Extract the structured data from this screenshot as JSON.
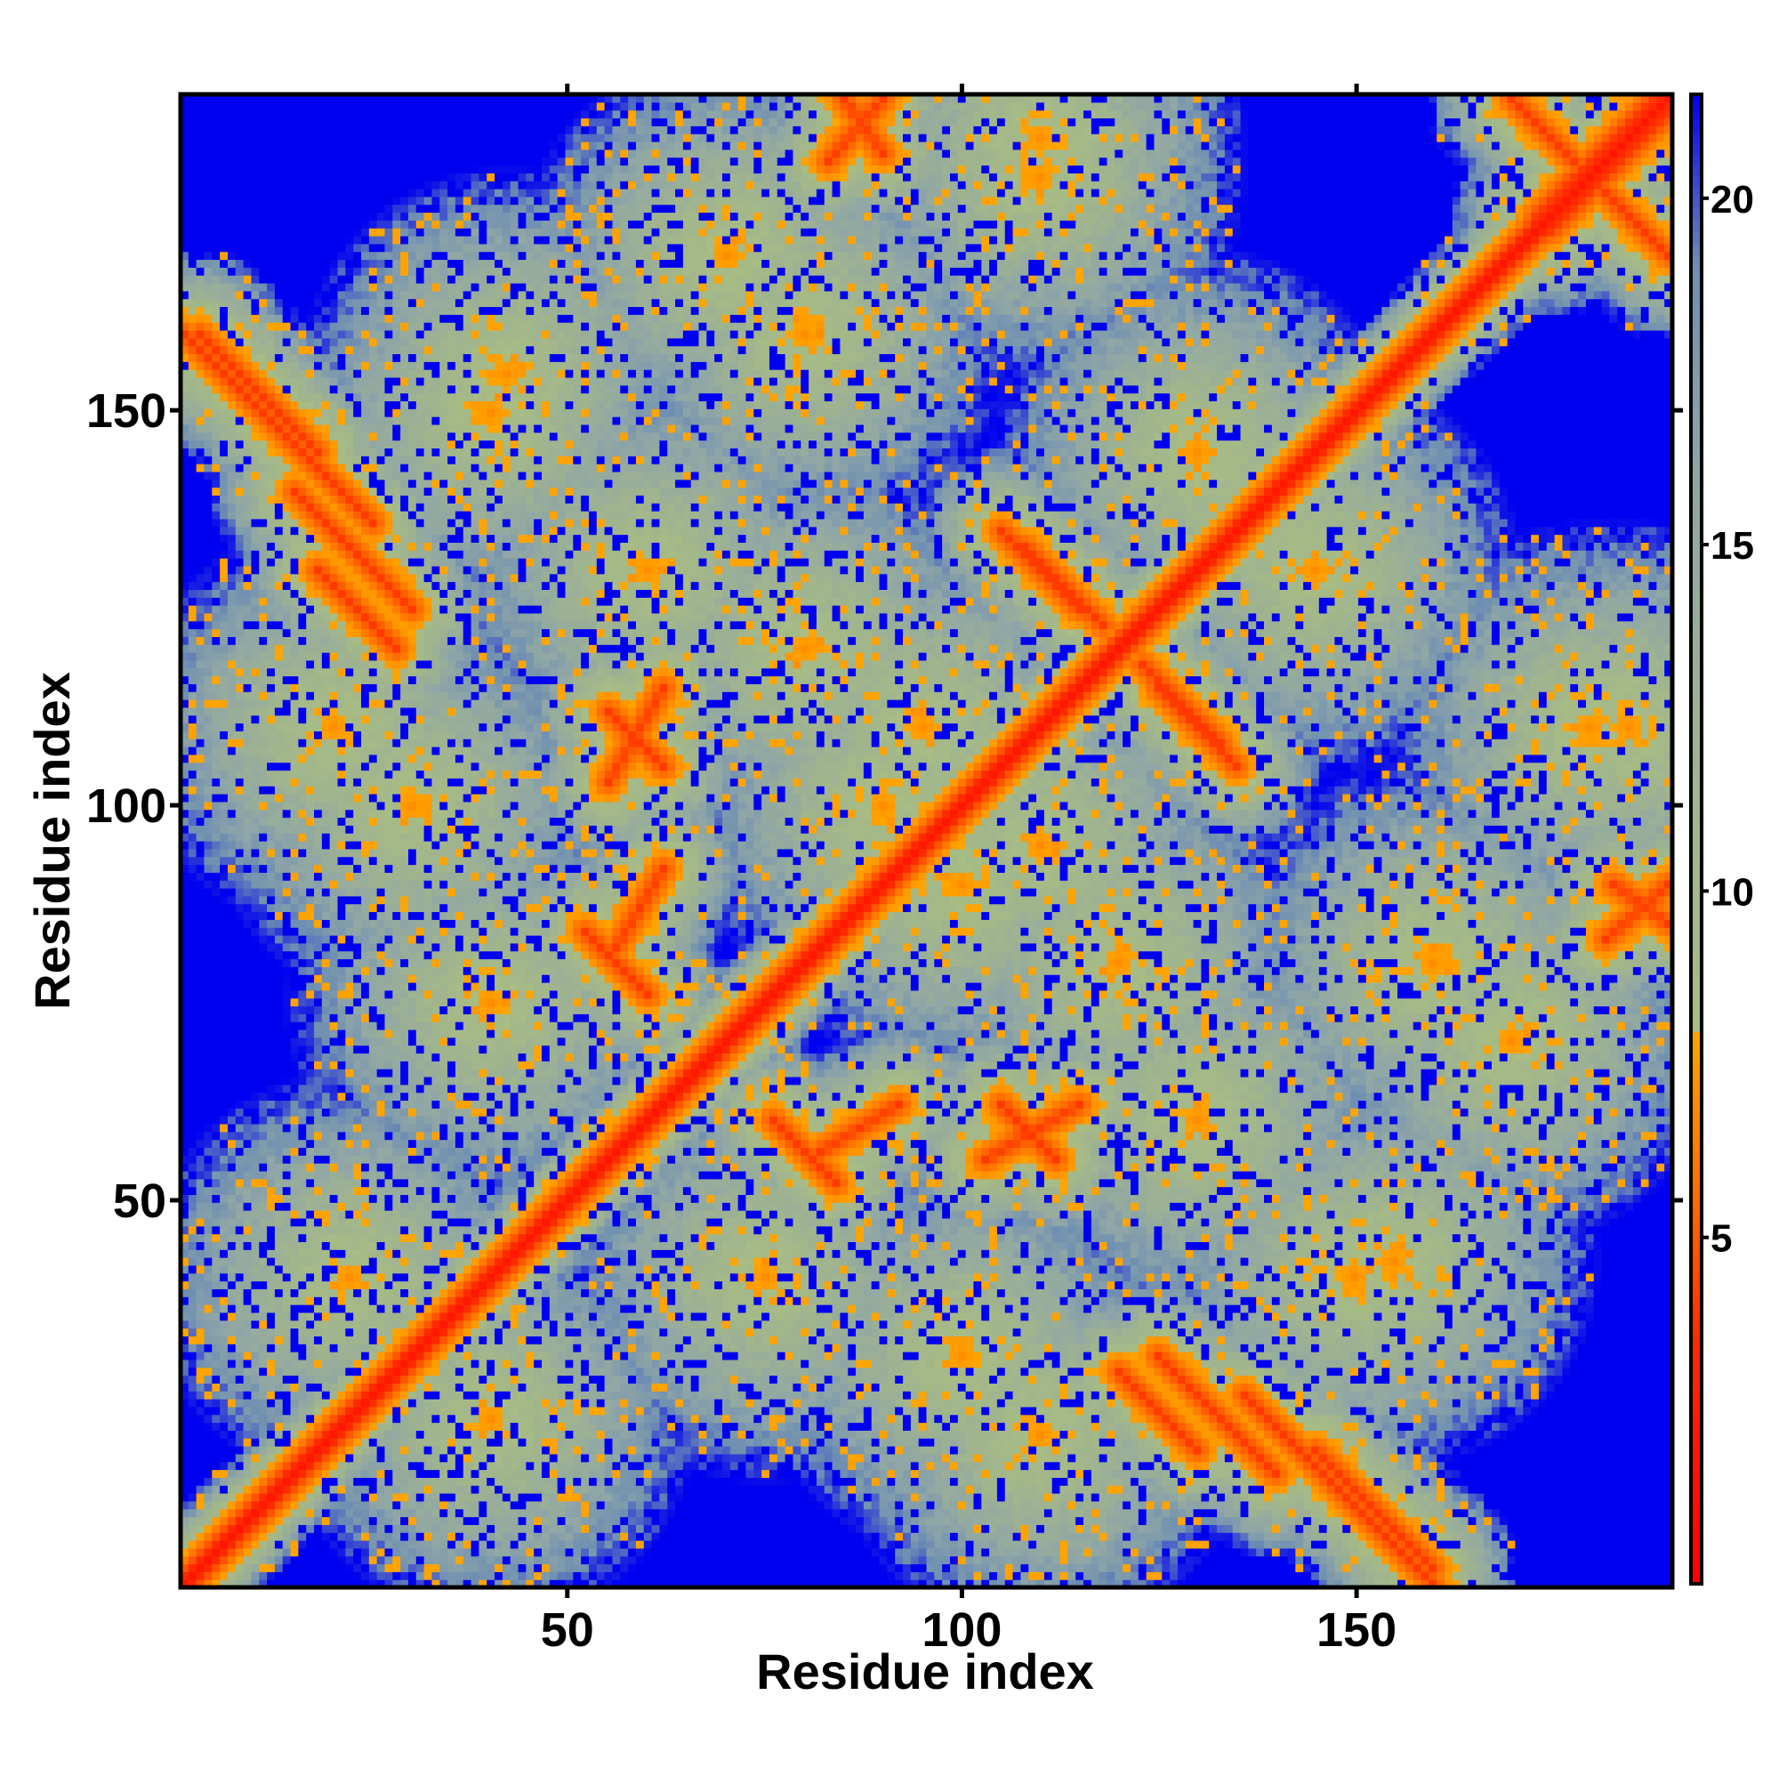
{
  "chart_data": {
    "type": "heatmap",
    "title": "",
    "xlabel": "Residue index",
    "ylabel": "Residue index",
    "xlim": [
      1,
      190
    ],
    "ylim": [
      1,
      190
    ],
    "x_ticks": [
      50,
      100,
      150
    ],
    "y_ticks": [
      50,
      100,
      150
    ],
    "n_residues": 190,
    "colorbar": {
      "range": [
        0,
        21.5
      ],
      "ticks": [
        5,
        10,
        15,
        20
      ],
      "stops": [
        {
          "value": 0,
          "color": "#ff0000"
        },
        {
          "value": 3.5,
          "color": "#ff2a00"
        },
        {
          "value": 5.5,
          "color": "#ff6a00"
        },
        {
          "value": 8,
          "color": "#ffa500"
        },
        {
          "value": 8.01,
          "color": "#a8bc84"
        },
        {
          "value": 12,
          "color": "#9fb390"
        },
        {
          "value": 16,
          "color": "#8fa6a6"
        },
        {
          "value": 19,
          "color": "#6f8fb2"
        },
        {
          "value": 21.5,
          "color": "#0000f0"
        }
      ]
    },
    "structure": {
      "description_of_bands": "contact map features",
      "parallel_bands": [
        {
          "x1": 1,
          "y1": 160,
          "x2": 25,
          "y2": 136,
          "type": "anti"
        },
        {
          "x1": 18,
          "y1": 130,
          "x2": 28,
          "y2": 120,
          "type": "anti"
        },
        {
          "x1": 108,
          "y1": 133,
          "x2": 118,
          "y2": 123,
          "type": "anti"
        },
        {
          "x1": 125,
          "y1": 115,
          "x2": 135,
          "y2": 105,
          "type": "anti"
        },
        {
          "x1": 125,
          "y1": 30,
          "x2": 140,
          "y2": 15,
          "type": "anti"
        },
        {
          "x1": 145,
          "y1": 18,
          "x2": 160,
          "y2": 3,
          "type": "anti"
        },
        {
          "x1": 170,
          "y1": 190,
          "x2": 188,
          "y2": 172,
          "type": "anti"
        },
        {
          "x1": 175,
          "y1": 173,
          "x2": 190,
          "y2": 188,
          "type": "anti"
        },
        {
          "x1": 85,
          "y1": 190,
          "x2": 90,
          "y2": 183,
          "type": "anti"
        },
        {
          "x1": 55,
          "y1": 112,
          "x2": 62,
          "y2": 105,
          "type": "anti"
        },
        {
          "x1": 52,
          "y1": 84,
          "x2": 60,
          "y2": 76,
          "type": "anti"
        },
        {
          "x1": 82,
          "y1": 56,
          "x2": 92,
          "y2": 62,
          "type": "para"
        },
        {
          "x1": 103,
          "y1": 55,
          "x2": 115,
          "y2": 62,
          "type": "para"
        },
        {
          "x1": 182,
          "y1": 83,
          "x2": 190,
          "y2": 90,
          "type": "para"
        }
      ],
      "blobs": [
        [
          40,
          150
        ],
        [
          70,
          170
        ],
        [
          22,
          40
        ],
        [
          40,
          75
        ],
        [
          95,
          110
        ],
        [
          100,
          90
        ],
        [
          75,
          40
        ],
        [
          155,
          42
        ],
        [
          160,
          80
        ],
        [
          145,
          130
        ],
        [
          30,
          100
        ],
        [
          60,
          130
        ],
        [
          110,
          20
        ],
        [
          180,
          110
        ],
        [
          120,
          80
        ],
        [
          110,
          185
        ]
      ]
    }
  }
}
